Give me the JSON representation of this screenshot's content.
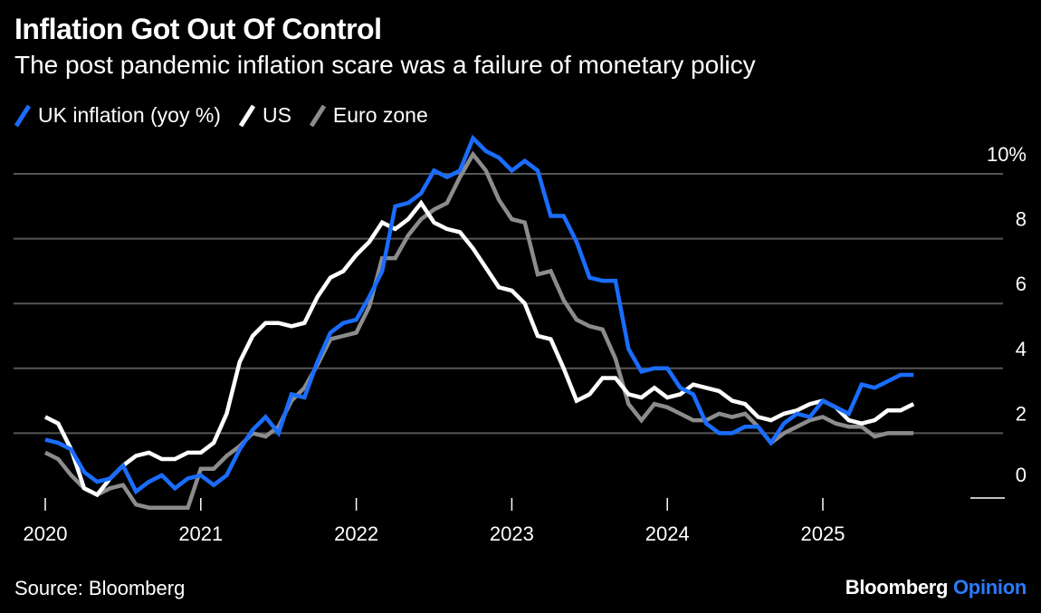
{
  "header": {
    "title": "Inflation Got Out Of Control",
    "subtitle": "The post pandemic inflation scare was a failure of monetary policy"
  },
  "footer": {
    "source": "Source: Bloomberg",
    "brand_main": "Bloomberg",
    "brand_accent": "Opinion"
  },
  "colors": {
    "background": "#000000",
    "uk": "#1a6dff",
    "us": "#ffffff",
    "euro": "#8c8c8c",
    "grid": "#555555",
    "brand_accent": "#2b7bff"
  },
  "chart_data": {
    "type": "line",
    "ylim": [
      0,
      10
    ],
    "yticks": [
      0,
      2,
      4,
      6,
      8,
      10
    ],
    "ytick_labels": [
      "0",
      "2",
      "4",
      "6",
      "8",
      "10%"
    ],
    "grid": true,
    "legend_position": "top-left",
    "xlim": [
      "2020-01",
      "2025-12"
    ],
    "xticks": [
      {
        "label": "2020",
        "date": "2020-01"
      },
      {
        "label": "2021",
        "date": "2021-01"
      },
      {
        "label": "2022",
        "date": "2022-01"
      },
      {
        "label": "2023",
        "date": "2023-01"
      },
      {
        "label": "2024",
        "date": "2024-01"
      },
      {
        "label": "2025",
        "date": "2025-01"
      }
    ],
    "series": [
      {
        "name": "UK inflation (yoy %)",
        "key": "uk",
        "start": "2020-01",
        "values": [
          1.8,
          1.7,
          1.5,
          0.8,
          0.5,
          0.6,
          1.0,
          0.2,
          0.5,
          0.7,
          0.3,
          0.6,
          0.7,
          0.4,
          0.7,
          1.5,
          2.1,
          2.5,
          2.0,
          3.2,
          3.1,
          4.2,
          5.1,
          5.4,
          5.5,
          6.2,
          7.0,
          9.0,
          9.1,
          9.4,
          10.1,
          9.9,
          10.1,
          11.1,
          10.7,
          10.5,
          10.1,
          10.4,
          10.1,
          8.7,
          8.7,
          7.9,
          6.8,
          6.7,
          6.7,
          4.6,
          3.9,
          4.0,
          4.0,
          3.4,
          3.2,
          2.3,
          2.0,
          2.0,
          2.2,
          2.2,
          1.7,
          2.3,
          2.6,
          2.5,
          3.0,
          2.8,
          2.6,
          3.5,
          3.4,
          3.6,
          3.8,
          3.8
        ]
      },
      {
        "name": "US",
        "key": "us",
        "start": "2020-01",
        "values": [
          2.5,
          2.3,
          1.5,
          0.3,
          0.1,
          0.6,
          1.0,
          1.3,
          1.4,
          1.2,
          1.2,
          1.4,
          1.4,
          1.7,
          2.6,
          4.2,
          5.0,
          5.4,
          5.4,
          5.3,
          5.4,
          6.2,
          6.8,
          7.0,
          7.5,
          7.9,
          8.5,
          8.3,
          8.6,
          9.1,
          8.5,
          8.3,
          8.2,
          7.7,
          7.1,
          6.5,
          6.4,
          6.0,
          5.0,
          4.9,
          4.0,
          3.0,
          3.2,
          3.7,
          3.7,
          3.2,
          3.1,
          3.4,
          3.1,
          3.2,
          3.5,
          3.4,
          3.3,
          3.0,
          2.9,
          2.5,
          2.4,
          2.6,
          2.7,
          2.9,
          3.0,
          2.8,
          2.4,
          2.3,
          2.4,
          2.7,
          2.7,
          2.9
        ]
      },
      {
        "name": "Euro zone",
        "key": "euro",
        "start": "2020-01",
        "values": [
          1.4,
          1.2,
          0.7,
          0.3,
          0.1,
          0.3,
          0.4,
          -0.2,
          -0.3,
          -0.3,
          -0.3,
          -0.3,
          0.9,
          0.9,
          1.3,
          1.6,
          2.0,
          1.9,
          2.2,
          3.0,
          3.4,
          4.1,
          4.9,
          5.0,
          5.1,
          5.9,
          7.4,
          7.4,
          8.1,
          8.6,
          8.9,
          9.1,
          9.9,
          10.6,
          10.1,
          9.2,
          8.6,
          8.5,
          6.9,
          7.0,
          6.1,
          5.5,
          5.3,
          5.2,
          4.3,
          2.9,
          2.4,
          2.9,
          2.8,
          2.6,
          2.4,
          2.4,
          2.6,
          2.5,
          2.6,
          2.2,
          1.7,
          2.0,
          2.2,
          2.4,
          2.5,
          2.3,
          2.2,
          2.2,
          1.9,
          2.0,
          2.0,
          2.0
        ]
      }
    ]
  }
}
